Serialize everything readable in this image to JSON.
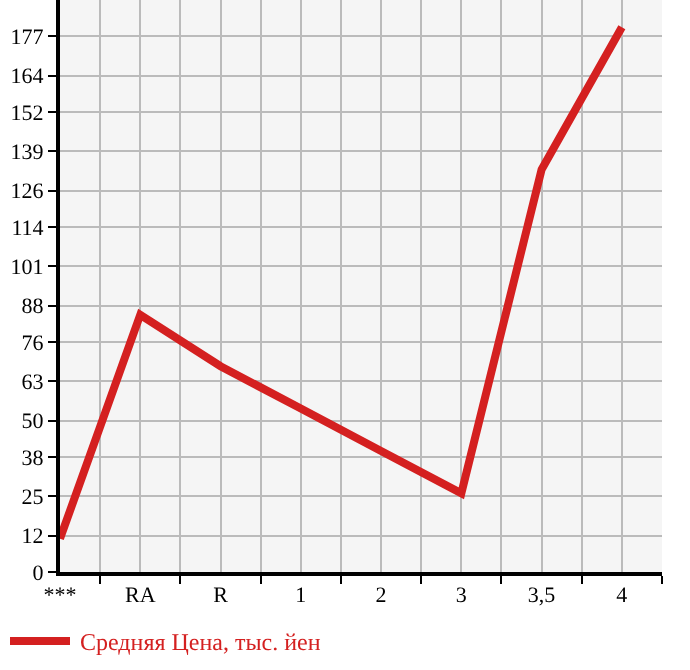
{
  "chart_data": {
    "type": "line",
    "categories": [
      "***",
      "RA",
      "R",
      "1",
      "2",
      "3",
      "3,5",
      "4"
    ],
    "series": [
      {
        "name": "Средняя Цена, тыс. йен",
        "color": "#d42020",
        "values": [
          11,
          85,
          68,
          54,
          40,
          26,
          133,
          180
        ]
      }
    ],
    "ylim": [
      0,
      189
    ],
    "yticks": [
      0,
      12,
      25,
      38,
      50,
      63,
      76,
      88,
      101,
      114,
      126,
      139,
      152,
      164,
      177
    ],
    "grid": true,
    "legend": "bottom",
    "marker": "none",
    "line_style": "solid"
  }
}
